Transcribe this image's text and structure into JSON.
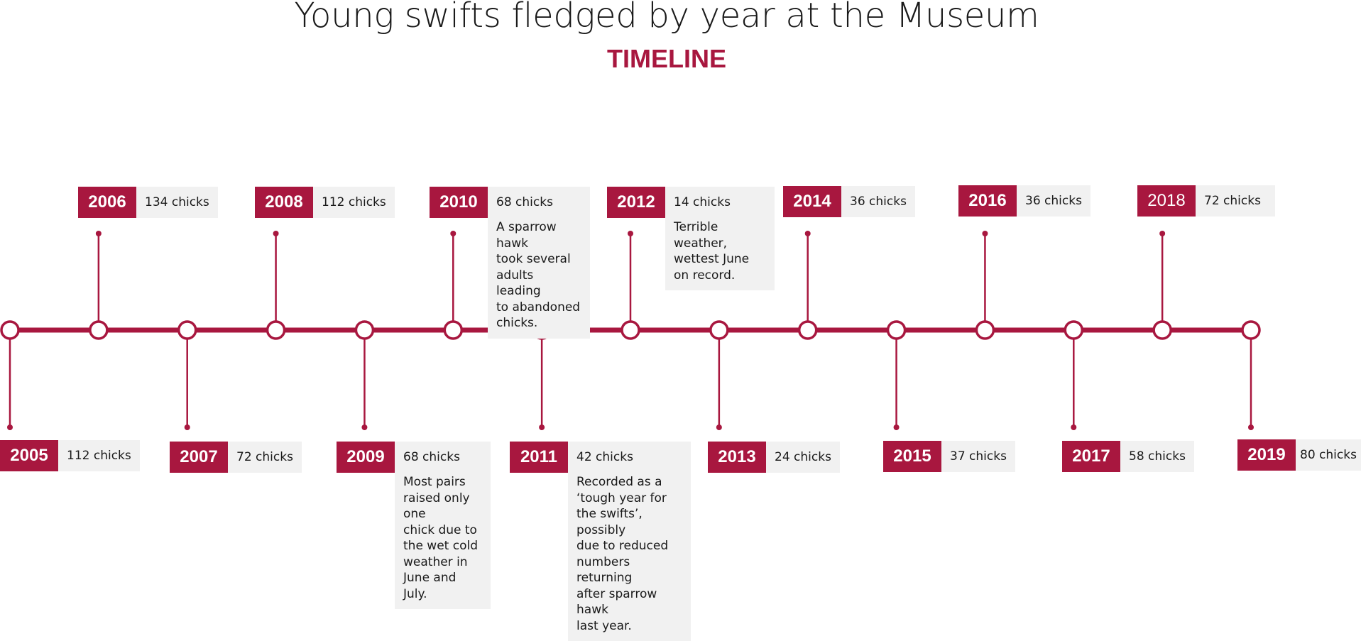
{
  "title": "Young swifts fledged by year at the Museum",
  "subtitle": "TIMELINE",
  "colors": {
    "accent": "#a8173f",
    "panel": "#f1f1f1"
  },
  "entries": [
    {
      "year": "2005",
      "count": "112 chicks",
      "note": ""
    },
    {
      "year": "2006",
      "count": "134 chicks",
      "note": ""
    },
    {
      "year": "2007",
      "count": "72 chicks",
      "note": ""
    },
    {
      "year": "2008",
      "count": "112 chicks",
      "note": ""
    },
    {
      "year": "2009",
      "count": "68 chicks",
      "note": "Most pairs\nraised only one\nchick due to\nthe wet cold\nweather in\nJune and July."
    },
    {
      "year": "2010",
      "count": "68 chicks",
      "note": "A sparrow hawk\ntook several\nadults leading\nto abandoned\nchicks."
    },
    {
      "year": "2011",
      "count": "42 chicks",
      "note": "Recorded as a\n‘tough year for\nthe swifts’, possibly\ndue to reduced\nnumbers returning\nafter sparrow hawk\nlast year."
    },
    {
      "year": "2012",
      "count": "14  chicks",
      "note": "Terrible weather,\nwettest June\non record."
    },
    {
      "year": "2013",
      "count": "24 chicks",
      "note": ""
    },
    {
      "year": "2014",
      "count": "36 chicks",
      "note": ""
    },
    {
      "year": "2015",
      "count": "37 chicks",
      "note": ""
    },
    {
      "year": "2016",
      "count": "36 chicks",
      "note": ""
    },
    {
      "year": "2017",
      "count": "58 chicks",
      "note": ""
    },
    {
      "year": "2018",
      "count": "72 chicks",
      "note": ""
    },
    {
      "year": "2019",
      "count": "80 chicks",
      "note": ""
    }
  ]
}
